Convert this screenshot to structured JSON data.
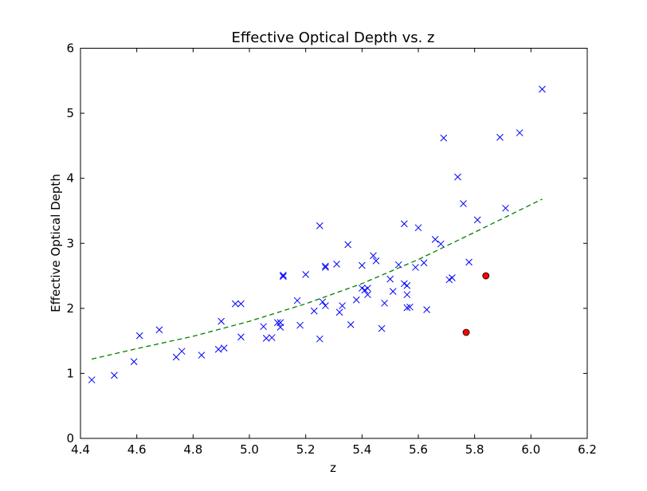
{
  "chart_data": {
    "type": "scatter",
    "title": "Effective Optical Depth vs. z",
    "xlabel": "z",
    "ylabel": "Effective Optical Depth",
    "xlim": [
      4.4,
      6.2
    ],
    "ylim": [
      0,
      6
    ],
    "grid": false,
    "xticks": [
      "4.4",
      "4.6",
      "4.8",
      "5.0",
      "5.2",
      "5.4",
      "5.6",
      "5.8",
      "6.0",
      "6.2"
    ],
    "yticks": [
      "0",
      "1",
      "2",
      "3",
      "4",
      "5",
      "6"
    ],
    "colors": {
      "x_markers": "#0000ff",
      "circles": "#ff0000",
      "fit_line": "#008000"
    },
    "series": [
      {
        "marker": "x",
        "points": [
          [
            4.44,
            0.9
          ],
          [
            4.52,
            0.97
          ],
          [
            4.59,
            1.18
          ],
          [
            4.61,
            1.58
          ],
          [
            4.68,
            1.67
          ],
          [
            4.74,
            1.25
          ],
          [
            4.76,
            1.34
          ],
          [
            4.83,
            1.28
          ],
          [
            4.89,
            1.37
          ],
          [
            4.9,
            1.8
          ],
          [
            4.91,
            1.39
          ],
          [
            4.95,
            2.07
          ],
          [
            4.97,
            2.07
          ],
          [
            4.97,
            1.56
          ],
          [
            5.05,
            1.72
          ],
          [
            5.06,
            1.54
          ],
          [
            5.08,
            1.55
          ],
          [
            5.1,
            1.78
          ],
          [
            5.11,
            1.71
          ],
          [
            5.11,
            1.78
          ],
          [
            5.12,
            2.51
          ],
          [
            5.12,
            2.49
          ],
          [
            5.17,
            2.12
          ],
          [
            5.18,
            1.74
          ],
          [
            5.2,
            2.52
          ],
          [
            5.23,
            1.96
          ],
          [
            5.25,
            1.53
          ],
          [
            5.25,
            3.27
          ],
          [
            5.26,
            2.1
          ],
          [
            5.27,
            2.04
          ],
          [
            5.27,
            2.63
          ],
          [
            5.27,
            2.65
          ],
          [
            5.31,
            2.68
          ],
          [
            5.32,
            1.94
          ],
          [
            5.33,
            2.04
          ],
          [
            5.35,
            2.98
          ],
          [
            5.36,
            1.75
          ],
          [
            5.38,
            2.13
          ],
          [
            5.4,
            2.31
          ],
          [
            5.4,
            2.66
          ],
          [
            5.41,
            2.28
          ],
          [
            5.42,
            2.21
          ],
          [
            5.42,
            2.31
          ],
          [
            5.44,
            2.81
          ],
          [
            5.45,
            2.73
          ],
          [
            5.47,
            1.69
          ],
          [
            5.48,
            2.08
          ],
          [
            5.5,
            2.45
          ],
          [
            5.51,
            2.26
          ],
          [
            5.53,
            2.67
          ],
          [
            5.55,
            2.38
          ],
          [
            5.55,
            3.3
          ],
          [
            5.56,
            2.35
          ],
          [
            5.56,
            2.21
          ],
          [
            5.56,
            2.01
          ],
          [
            5.57,
            2.02
          ],
          [
            5.59,
            2.63
          ],
          [
            5.6,
            3.24
          ],
          [
            5.62,
            2.7
          ],
          [
            5.63,
            1.98
          ],
          [
            5.66,
            3.06
          ],
          [
            5.68,
            2.99
          ],
          [
            5.69,
            4.62
          ],
          [
            5.71,
            2.44
          ],
          [
            5.72,
            2.47
          ],
          [
            5.74,
            4.02
          ],
          [
            5.76,
            3.61
          ],
          [
            5.78,
            2.71
          ],
          [
            5.81,
            3.36
          ],
          [
            5.89,
            4.63
          ],
          [
            5.91,
            3.54
          ],
          [
            5.96,
            4.7
          ],
          [
            6.04,
            5.37
          ]
        ]
      },
      {
        "marker": "circle",
        "points": [
          [
            5.77,
            1.63
          ],
          [
            5.84,
            2.5
          ]
        ]
      },
      {
        "marker": "dashed-line",
        "x_range": [
          4.44,
          6.04
        ],
        "values": [
          [
            4.44,
            1.22
          ],
          [
            4.6,
            1.38
          ],
          [
            4.8,
            1.57
          ],
          [
            5.0,
            1.8
          ],
          [
            5.2,
            2.07
          ],
          [
            5.4,
            2.38
          ],
          [
            5.6,
            2.75
          ],
          [
            5.8,
            3.17
          ],
          [
            6.04,
            3.68
          ]
        ]
      }
    ]
  }
}
